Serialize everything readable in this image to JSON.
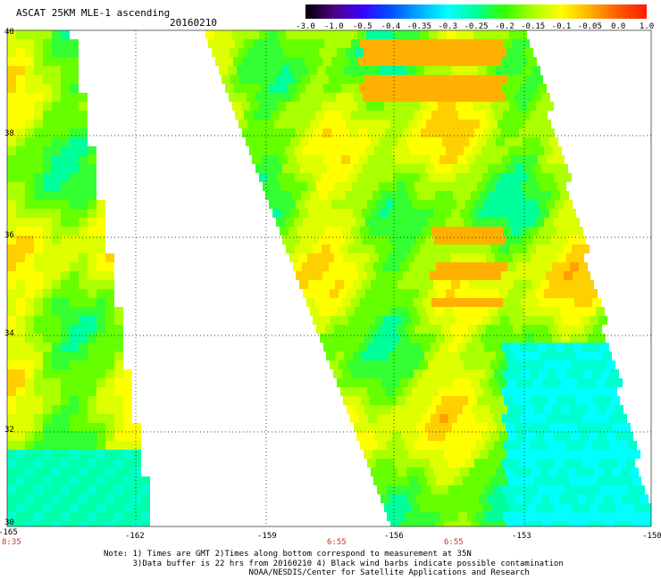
{
  "header": {
    "title": "ASCAT 25KM MLE-1 ascending",
    "date": "20160210"
  },
  "colorbar": {
    "ticks": [
      "-3.0",
      "-1.0",
      "-0.5",
      "-0.4",
      "-0.35",
      "-0.3",
      "-0.25",
      "-0.2",
      "-0.15",
      "-0.1",
      "-0.05",
      "0.0",
      "1.0"
    ],
    "colors": [
      "#000000",
      "#4b0082",
      "#3a00ff",
      "#0050ff",
      "#00aaff",
      "#00ffff",
      "#00ff9a",
      "#33ff00",
      "#aaff00",
      "#ffff00",
      "#ffb000",
      "#ff5a00",
      "#ff1a00"
    ]
  },
  "map": {
    "lon_range": [
      -165,
      -150
    ],
    "lat_range": [
      30,
      40
    ],
    "lat_ticks": [
      "30",
      "32",
      "34",
      "36",
      "38",
      "40"
    ],
    "lon_ticks": [
      "-165",
      "-162",
      "-159",
      "-156",
      "-153",
      "-150"
    ],
    "pass_times": [
      "8:35",
      "6:55",
      "6:55"
    ]
  },
  "notes": [
    "Note: 1) Times are GMT 2)Times along bottom correspond to measurement at 35N",
    "      3)Data buffer is 22 hrs from 20160210 4) Black wind barbs indicate possible contamination",
    "                              NOAA/NESDIS/Center for Satellite Applications and Research"
  ]
}
